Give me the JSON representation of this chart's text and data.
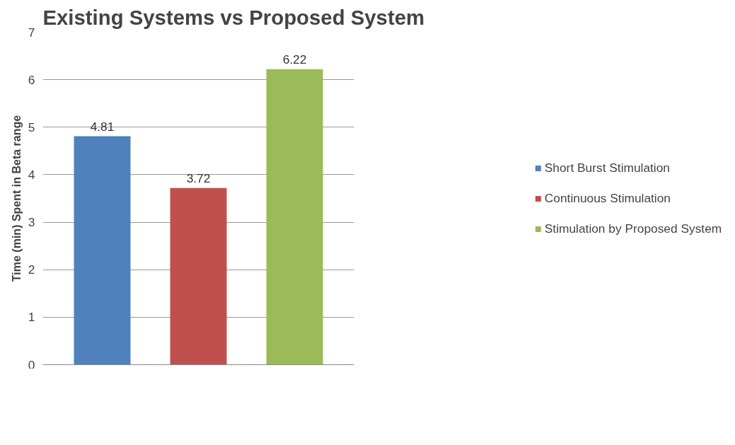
{
  "chart_data": {
    "type": "bar",
    "title": "Existing Systems vs Proposed System",
    "ylabel": "Time (min) Spent in Beta range",
    "categories": [
      null
    ],
    "series": [
      {
        "name": "Short Burst Stimulation",
        "color": "#4f81bd",
        "values": [
          4.81
        ]
      },
      {
        "name": "Continuous Stimulation",
        "color": "#c0504d",
        "values": [
          3.72
        ]
      },
      {
        "name": "Stimulation by Proposed System",
        "color": "#9bbb59",
        "values": [
          6.22
        ]
      }
    ],
    "ylim": [
      0,
      7
    ],
    "yticks": [
      0,
      1,
      2,
      3,
      4,
      5,
      6,
      7
    ],
    "grid": "y",
    "legend": "right",
    "tick_labels": "y",
    "data_labels": true
  }
}
